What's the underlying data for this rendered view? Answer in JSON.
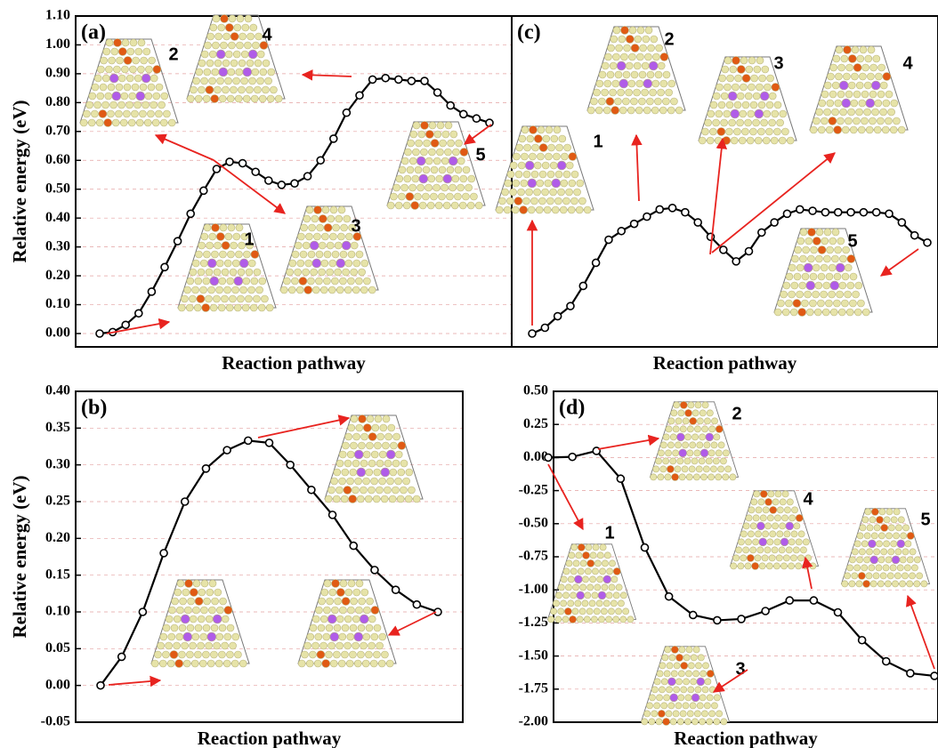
{
  "chart_data": [
    {
      "type": "line",
      "panel_label": "(a)",
      "ylabel": "Relative energy (eV)",
      "xlabel": "Reaction pathway",
      "color": "#000000",
      "grid": true,
      "values": [
        0,
        0.005,
        0.03,
        0.07,
        0.145,
        0.23,
        0.32,
        0.415,
        0.495,
        0.57,
        0.595,
        0.59,
        0.56,
        0.53,
        0.515,
        0.52,
        0.545,
        0.6,
        0.675,
        0.765,
        0.825,
        0.88,
        0.885,
        0.88,
        0.875,
        0.875,
        0.835,
        0.79,
        0.76,
        0.745,
        0.73
      ],
      "ylim": [
        0,
        1.1
      ],
      "yticks": [
        {
          "value": 0,
          "label": "0.00"
        },
        {
          "value": 0.1,
          "label": "0.10"
        },
        {
          "value": 0.2,
          "label": "0.20"
        },
        {
          "value": 0.3,
          "label": "0.30"
        },
        {
          "value": 0.4,
          "label": "0.40"
        },
        {
          "value": 0.5,
          "label": "0.50"
        },
        {
          "value": 0.6,
          "label": "0.60"
        },
        {
          "value": 0.7,
          "label": "0.70"
        },
        {
          "value": 0.8,
          "label": "0.80"
        },
        {
          "value": 0.9,
          "label": "0.90"
        },
        {
          "value": 1,
          "label": "1.00"
        },
        {
          "value": 1.1,
          "label": "1.10"
        }
      ],
      "inset_labels": [
        "1",
        "2",
        "3",
        "4",
        "5"
      ]
    },
    {
      "type": "line",
      "panel_label": "(b)",
      "ylabel": "Relative energy (eV)",
      "xlabel": "Reaction pathway",
      "color": "#000000",
      "grid": true,
      "values": [
        0,
        0.039,
        0.1,
        0.18,
        0.25,
        0.295,
        0.32,
        0.333,
        0.33,
        0.3,
        0.266,
        0.232,
        0.19,
        0.157,
        0.13,
        0.11,
        0.1
      ],
      "ylim": [
        -0.05,
        0.4
      ],
      "yticks": [
        -0.05,
        {
          "value": 0,
          "label": "0.00"
        },
        0.05,
        {
          "value": 0.1,
          "label": "0.10"
        },
        0.15,
        {
          "value": 0.2,
          "label": "0.20"
        },
        0.25,
        {
          "value": 0.3,
          "label": "0.30"
        },
        0.35,
        {
          "value": 0.4,
          "label": "0.40"
        }
      ]
    },
    {
      "type": "line",
      "panel_label": "(c)",
      "xlabel": "Reaction pathway",
      "color": "#000000",
      "values": [
        0,
        0.02,
        0.06,
        0.095,
        0.165,
        0.245,
        0.325,
        0.355,
        0.38,
        0.405,
        0.43,
        0.435,
        0.42,
        0.385,
        0.335,
        0.29,
        0.25,
        0.285,
        0.35,
        0.385,
        0.415,
        0.43,
        0.425,
        0.42,
        0.42,
        0.42,
        0.42,
        0.42,
        0.415,
        0.385,
        0.34,
        0.315
      ],
      "ylim": [
        0,
        1.1
      ],
      "inset_labels": [
        "1",
        "2",
        "3",
        "4",
        "5"
      ]
    },
    {
      "type": "line",
      "panel_label": "(d)",
      "xlabel": "Reaction pathway",
      "color": "#000000",
      "grid": true,
      "values": [
        0,
        0.005,
        0.05,
        -0.16,
        -0.68,
        -1.05,
        -1.19,
        -1.23,
        -1.22,
        -1.16,
        -1.08,
        -1.08,
        -1.17,
        -1.38,
        -1.54,
        -1.63,
        -1.65
      ],
      "ylim": [
        -2,
        0.5
      ],
      "yticks": [
        {
          "value": -2,
          "label": "-2.00"
        },
        -1.75,
        {
          "value": -1.5,
          "label": "-1.50"
        },
        -1.25,
        {
          "value": -1,
          "label": "-1.00"
        },
        -0.75,
        {
          "value": -0.5,
          "label": "-0.50"
        },
        -0.25,
        {
          "value": 0,
          "label": "0.00"
        },
        0.25,
        {
          "value": 0.5,
          "label": "0.50"
        }
      ],
      "inset_labels": [
        "1",
        "2",
        "3",
        "4",
        "5"
      ]
    }
  ]
}
